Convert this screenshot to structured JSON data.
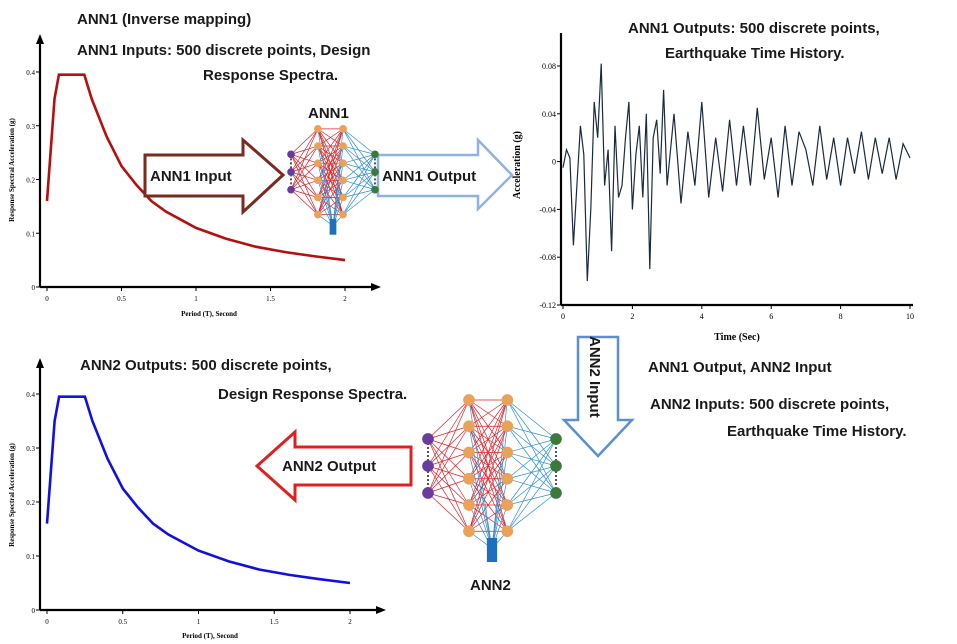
{
  "labels": {
    "ann1_title": "ANN1 (Inverse mapping)",
    "ann1_inputs_l1": "ANN1 Inputs: 500 discrete points, Design",
    "ann1_inputs_l2": "Response Spectra.",
    "ann1_outputs_l1": "ANN1 Outputs: 500 discrete points,",
    "ann1_outputs_l2": "Earthquake Time History.",
    "ann1_net_label": "ANN1",
    "ann1_input_arrow": "ANN1 Input",
    "ann1_output_arrow": "ANN1 Output",
    "ann2_input_arrow": "ANN2 Input",
    "ann1_out_ann2_in": "ANN1 Output, ANN2 Input",
    "ann2_inputs_l1": "ANN2 Inputs: 500 discrete points,",
    "ann2_inputs_l2": "Earthquake Time History.",
    "ann2_outputs_l1": "ANN2 Outputs: 500 discrete points,",
    "ann2_outputs_l2": "Design Response Spectra.",
    "ann2_output_arrow": "ANN2 Output",
    "ann2_net_label": "ANN2"
  },
  "colors": {
    "spectrum1": "#b50f0f",
    "spectrum2": "#1010e0",
    "history": "#1b2a40",
    "arrow_brown": "#7a2a1e",
    "arrow_blue": "#8fb3de",
    "arrow_red": "#e02020",
    "net_red": "#d8232a",
    "net_blue": "#2f8fd0",
    "node_orange": "#e9a25a",
    "node_purple": "#6b3b9c",
    "node_green": "#3d7a3a"
  },
  "chart_data": [
    {
      "type": "line",
      "id": "spectrum-ann1-input",
      "xlabel": "Period (T), Second",
      "ylabel": "Response Spectral Acceleration (g)",
      "xlim": [
        0,
        2.2
      ],
      "ylim": [
        0,
        0.45
      ],
      "xticks": [
        "0",
        "0.5",
        "1",
        "1.5",
        "2"
      ],
      "xtick_values": [
        0,
        0.5,
        1,
        1.5,
        2
      ],
      "yticks": [
        "0",
        "0.1",
        "0.2",
        "0.3",
        "0.4"
      ],
      "ytick_values": [
        0,
        0.1,
        0.2,
        0.3,
        0.4
      ],
      "x": [
        0,
        0.05,
        0.08,
        0.25,
        0.3,
        0.4,
        0.5,
        0.6,
        0.7,
        0.8,
        0.9,
        1.0,
        1.2,
        1.4,
        1.6,
        1.8,
        2.0
      ],
      "y": [
        0.16,
        0.35,
        0.395,
        0.395,
        0.35,
        0.28,
        0.225,
        0.19,
        0.16,
        0.14,
        0.125,
        0.11,
        0.09,
        0.075,
        0.065,
        0.057,
        0.05
      ]
    },
    {
      "type": "line",
      "id": "earthquake-time-history",
      "xlabel": "Time (Sec)",
      "ylabel": "Acceleration (g)",
      "xlim": [
        0,
        10
      ],
      "ylim": [
        -0.12,
        0.1
      ],
      "xticks": [
        "0",
        "2",
        "4",
        "6",
        "8",
        "10"
      ],
      "xtick_values": [
        0,
        2,
        4,
        6,
        8,
        10
      ],
      "yticks": [
        "-0.12",
        "-0.08",
        "-0.04",
        "0",
        "0.04",
        "0.08"
      ],
      "ytick_values": [
        -0.12,
        -0.08,
        -0.04,
        0,
        0.04,
        0.08
      ],
      "x": [
        0,
        0.1,
        0.2,
        0.3,
        0.4,
        0.5,
        0.6,
        0.7,
        0.8,
        0.9,
        1.0,
        1.1,
        1.2,
        1.3,
        1.4,
        1.5,
        1.6,
        1.7,
        1.8,
        1.9,
        2.0,
        2.1,
        2.2,
        2.3,
        2.4,
        2.5,
        2.6,
        2.7,
        2.8,
        2.9,
        3.0,
        3.2,
        3.4,
        3.6,
        3.8,
        4.0,
        4.2,
        4.4,
        4.6,
        4.8,
        5.0,
        5.2,
        5.4,
        5.6,
        5.8,
        6.0,
        6.2,
        6.4,
        6.6,
        6.8,
        7.0,
        7.2,
        7.4,
        7.6,
        7.8,
        8.0,
        8.2,
        8.4,
        8.6,
        8.8,
        9.0,
        9.2,
        9.4,
        9.6,
        9.8,
        10.0
      ],
      "y": [
        -0.005,
        0.01,
        0.003,
        -0.07,
        -0.02,
        0.03,
        0.006,
        -0.1,
        -0.04,
        0.05,
        0.02,
        0.082,
        -0.02,
        0.01,
        -0.075,
        0.03,
        -0.03,
        -0.02,
        0.02,
        0.05,
        -0.04,
        0.006,
        0.03,
        -0.03,
        0.04,
        -0.09,
        0.02,
        0.035,
        -0.01,
        0.06,
        -0.02,
        0.04,
        -0.035,
        0.025,
        -0.02,
        0.05,
        -0.03,
        0.02,
        -0.025,
        0.035,
        -0.02,
        0.03,
        -0.02,
        0.045,
        -0.015,
        0.02,
        -0.03,
        0.03,
        -0.02,
        0.025,
        0.01,
        -0.02,
        0.03,
        -0.015,
        0.02,
        -0.02,
        0.02,
        -0.01,
        0.025,
        -0.015,
        0.02,
        -0.01,
        0.02,
        -0.015,
        0.015,
        0.003
      ]
    },
    {
      "type": "line",
      "id": "spectrum-ann2-output",
      "xlabel": "Period (T), Second",
      "ylabel": "Response Spectral Acceleration (g)",
      "xlim": [
        0,
        2.2
      ],
      "ylim": [
        0,
        0.45
      ],
      "xticks": [
        "0",
        "0.5",
        "1",
        "1.5",
        "2"
      ],
      "xtick_values": [
        0,
        0.5,
        1,
        1.5,
        2
      ],
      "yticks": [
        "0",
        "0.1",
        "0.2",
        "0.3",
        "0.4"
      ],
      "ytick_values": [
        0,
        0.1,
        0.2,
        0.3,
        0.4
      ],
      "x": [
        0,
        0.05,
        0.08,
        0.25,
        0.3,
        0.4,
        0.5,
        0.6,
        0.7,
        0.8,
        0.9,
        1.0,
        1.2,
        1.4,
        1.6,
        1.8,
        2.0
      ],
      "y": [
        0.16,
        0.35,
        0.395,
        0.395,
        0.35,
        0.28,
        0.225,
        0.19,
        0.16,
        0.14,
        0.125,
        0.11,
        0.09,
        0.075,
        0.065,
        0.057,
        0.05
      ]
    }
  ]
}
